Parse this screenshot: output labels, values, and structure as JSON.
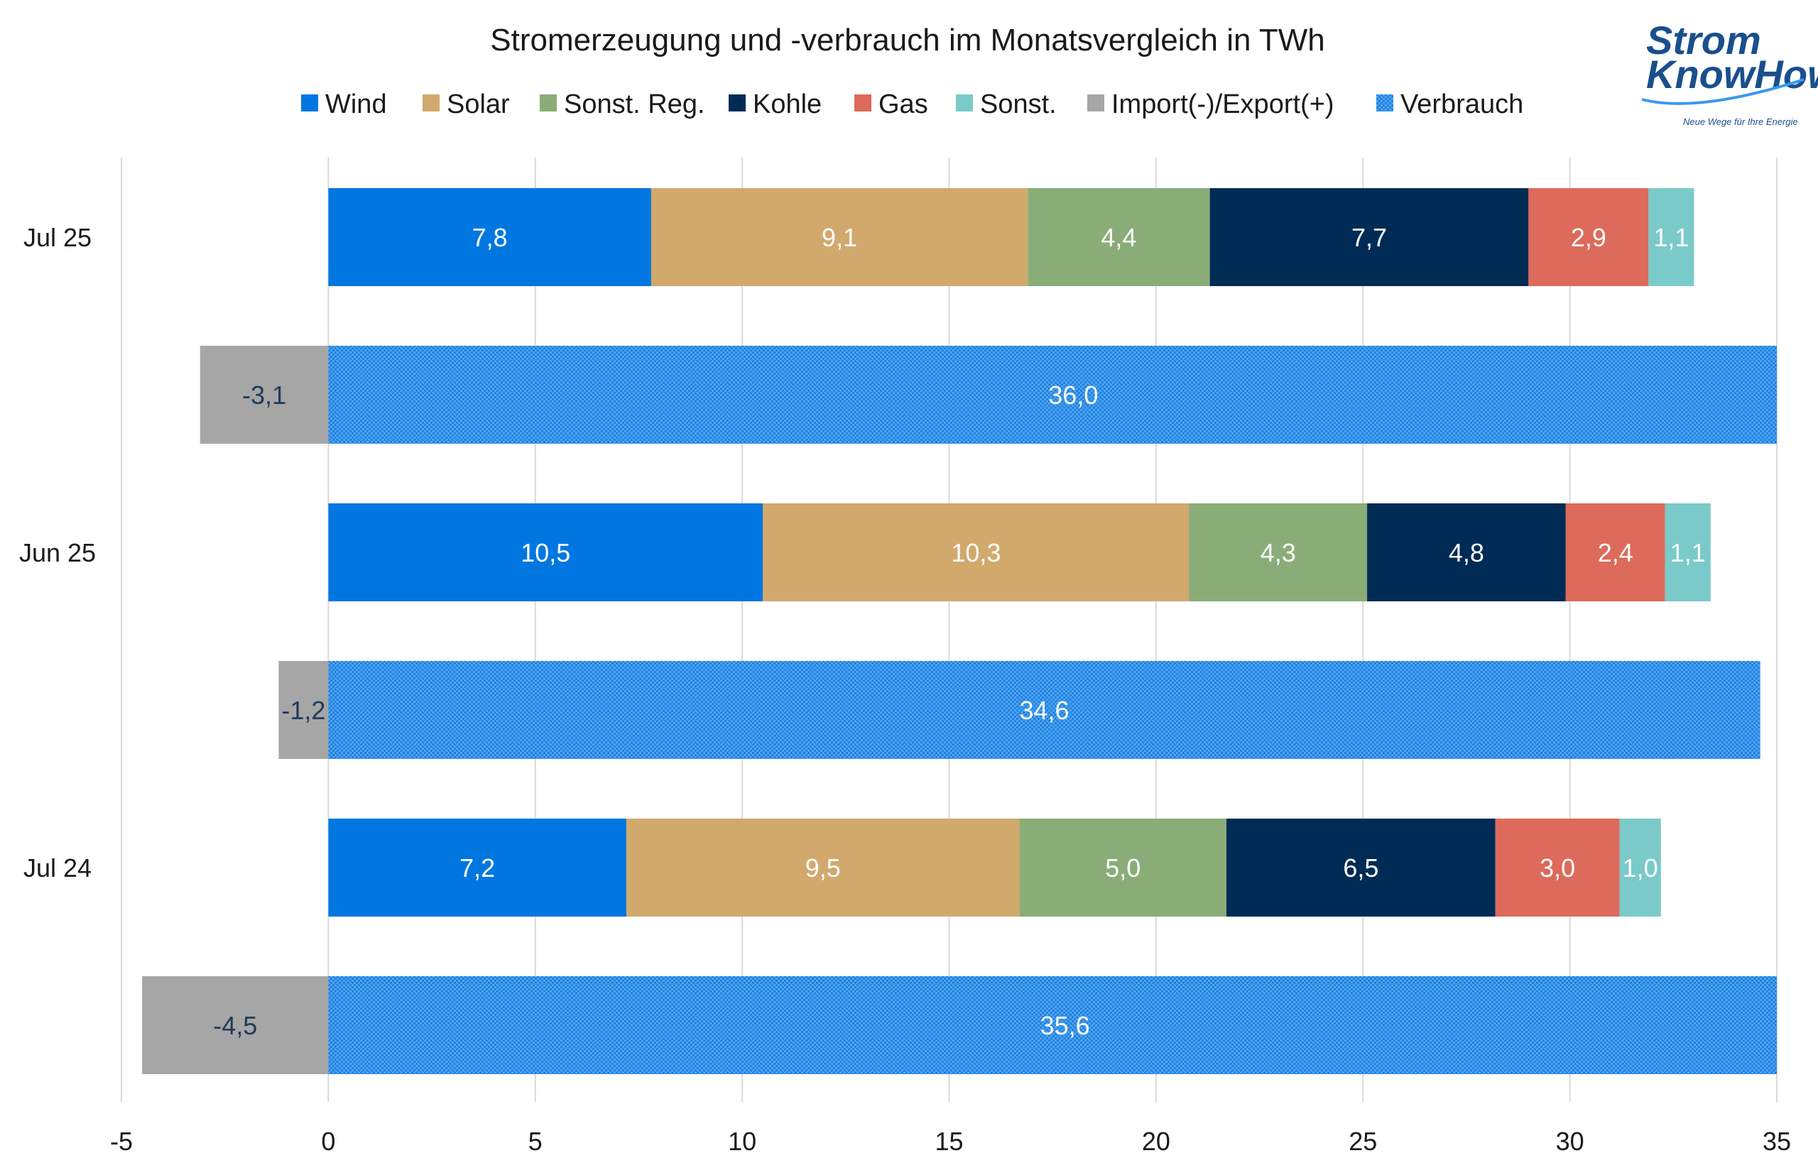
{
  "chart_data": {
    "type": "bar",
    "orientation": "horizontal",
    "stacked": true,
    "title": "Stromerzeugung und -verbrauch im Monatsvergleich in TWh",
    "xlim": [
      -5,
      35
    ],
    "x_ticks": [
      -5,
      0,
      5,
      10,
      15,
      20,
      25,
      30,
      35
    ],
    "x_tick_labels": [
      "-5",
      "0",
      "5",
      "10",
      "15",
      "20",
      "25",
      "30",
      "35"
    ],
    "grid": true,
    "legend_position": "top",
    "groups": [
      {
        "label": "Jul 25",
        "generation": [
          {
            "series": "Wind",
            "value": 7.8,
            "label": "7,8"
          },
          {
            "series": "Solar",
            "value": 9.1,
            "label": "9,1"
          },
          {
            "series": "Sonst. Reg.",
            "value": 4.4,
            "label": "4,4"
          },
          {
            "series": "Kohle",
            "value": 7.7,
            "label": "7,7"
          },
          {
            "series": "Gas",
            "value": 2.9,
            "label": "2,9"
          },
          {
            "series": "Sonst.",
            "value": 1.1,
            "label": "1,1"
          }
        ],
        "import_export": {
          "series": "Import(-)/Export(+)",
          "value": -3.1,
          "label": "-3,1"
        },
        "consumption": {
          "series": "Verbrauch",
          "value": 36.0,
          "label": "36,0"
        }
      },
      {
        "label": "Jun 25",
        "generation": [
          {
            "series": "Wind",
            "value": 10.5,
            "label": "10,5"
          },
          {
            "series": "Solar",
            "value": 10.3,
            "label": "10,3"
          },
          {
            "series": "Sonst. Reg.",
            "value": 4.3,
            "label": "4,3"
          },
          {
            "series": "Kohle",
            "value": 4.8,
            "label": "4,8"
          },
          {
            "series": "Gas",
            "value": 2.4,
            "label": "2,4"
          },
          {
            "series": "Sonst.",
            "value": 1.1,
            "label": "1,1"
          }
        ],
        "import_export": {
          "series": "Import(-)/Export(+)",
          "value": -1.2,
          "label": "-1,2"
        },
        "consumption": {
          "series": "Verbrauch",
          "value": 34.6,
          "label": "34,6"
        }
      },
      {
        "label": "Jul 24",
        "generation": [
          {
            "series": "Wind",
            "value": 7.2,
            "label": "7,2"
          },
          {
            "series": "Solar",
            "value": 9.5,
            "label": "9,5"
          },
          {
            "series": "Sonst. Reg.",
            "value": 5.0,
            "label": "5,0"
          },
          {
            "series": "Kohle",
            "value": 6.5,
            "label": "6,5"
          },
          {
            "series": "Gas",
            "value": 3.0,
            "label": "3,0"
          },
          {
            "series": "Sonst.",
            "value": 1.0,
            "label": "1,0"
          }
        ],
        "import_export": {
          "series": "Import(-)/Export(+)",
          "value": -4.5,
          "label": "-4,5"
        },
        "consumption": {
          "series": "Verbrauch",
          "value": 35.6,
          "label": "35,6"
        }
      }
    ],
    "legend": [
      {
        "name": "Wind",
        "color": "#0077e0",
        "pattern": false
      },
      {
        "name": "Solar",
        "color": "#d1a96d",
        "pattern": false
      },
      {
        "name": "Sonst. Reg.",
        "color": "#8aad78",
        "pattern": false
      },
      {
        "name": "Kohle",
        "color": "#002b55",
        "pattern": false
      },
      {
        "name": "Gas",
        "color": "#dd6a5a",
        "pattern": false
      },
      {
        "name": "Sonst.",
        "color": "#7bcaca",
        "pattern": false
      },
      {
        "name": "Import(-)/Export(+)",
        "color": "#a6a6a6",
        "pattern": false
      },
      {
        "name": "Verbrauch",
        "color": "#1e88e5",
        "pattern": true
      }
    ],
    "label_colors": {
      "light": "#ffffff",
      "dark": "#1f3b5a"
    }
  },
  "logo": {
    "line1": "Strom",
    "line2": "KnowHow",
    "tagline": "Neue Wege für Ihre Energie",
    "color": "#1a4f8c"
  }
}
